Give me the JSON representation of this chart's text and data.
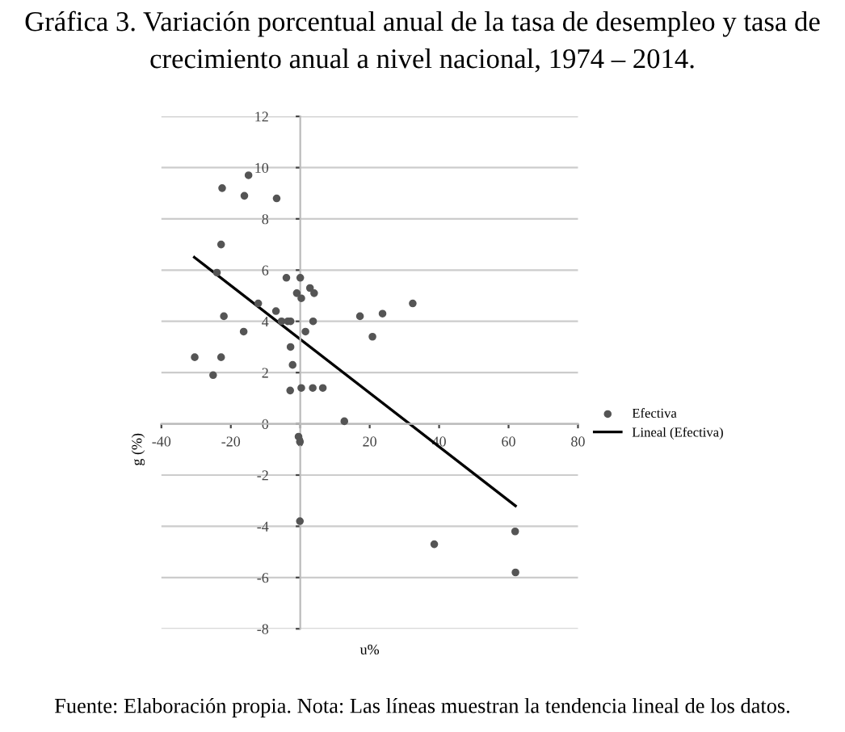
{
  "chart_data": {
    "type": "scatter",
    "title": "Gráfica 3. Variación porcentual anual de la tasa de desempleo y tasa de crecimiento anual a nivel nacional, 1974 – 2014.",
    "xlabel": "u%",
    "ylabel": "g (%)",
    "annotations": [
      "Fuente: Elaboración propia. Nota: Las líneas muestran la tendencia lineal de los datos."
    ],
    "series": [
      {
        "name": "Efectiva",
        "color": "#555555",
        "marker": "circle",
        "x": [
          -22.5,
          -14.9,
          -16.1,
          -6.8,
          -22.8,
          -24,
          -4,
          0,
          2.8,
          4,
          -1,
          0.3,
          -12.1,
          32.4,
          -7,
          -22,
          17.2,
          23.7,
          -5.4,
          -3.6,
          -2.8,
          3.7,
          -16.3,
          1.5,
          20.8,
          -2.8,
          -30.4,
          -22.8,
          -2.2,
          -25.1,
          -2.9,
          0.3,
          3.6,
          6.5,
          12.7,
          -0.5,
          -0.1,
          -0.1,
          38.6,
          61.9,
          62
        ],
        "values": [
          9.2,
          9.7,
          8.9,
          8.8,
          7.0,
          5.9,
          5.7,
          5.7,
          5.3,
          5.1,
          5.1,
          4.9,
          4.7,
          4.7,
          4.4,
          4.2,
          4.2,
          4.3,
          4.0,
          4.0,
          4.0,
          4.0,
          3.6,
          3.6,
          3.4,
          3.0,
          2.6,
          2.6,
          2.3,
          1.9,
          1.3,
          1.4,
          1.4,
          1.4,
          0.1,
          -0.5,
          -0.7,
          -3.8,
          -4.7,
          -4.2,
          -5.8
        ]
      },
      {
        "name": "Lineal (Efectiva)",
        "color": "#000000",
        "type": "line",
        "marker": "none",
        "line_style": "solid",
        "x": [
          -30.5,
          62
        ],
        "values": [
          6.5,
          -3.2
        ]
      }
    ],
    "xlim": [
      -40,
      80
    ],
    "xticks": [
      -40,
      -20,
      0,
      20,
      40,
      60,
      80
    ],
    "ylim": [
      -8,
      12
    ],
    "yticks": [
      -8,
      -6,
      -4,
      -2,
      0,
      2,
      4,
      6,
      8,
      10,
      12
    ],
    "grid": "y",
    "legend": "right"
  }
}
